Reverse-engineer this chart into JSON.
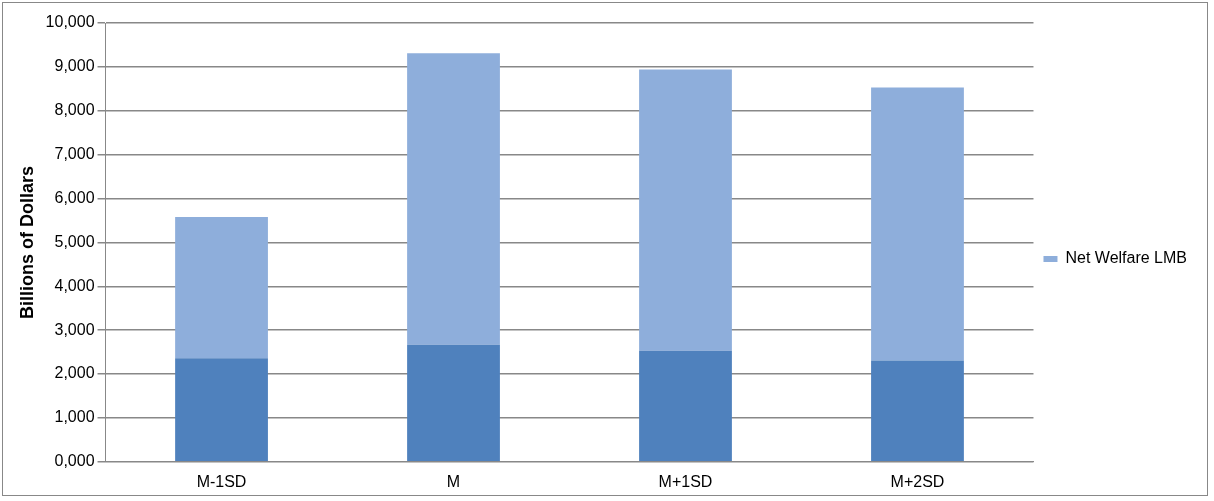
{
  "chart_data": {
    "type": "bar",
    "stacked": true,
    "ylabel": "Billions of Dollars",
    "categories": [
      "M-1SD",
      "M",
      "M+1SD",
      "M+2SD"
    ],
    "series": [
      {
        "color": "#4f81bd",
        "values": [
          2360,
          2670,
          2530,
          2310
        ]
      },
      {
        "name": "Net Welfare LMB",
        "color": "#8eaedb",
        "values": [
          3220,
          6640,
          6410,
          6220
        ]
      }
    ],
    "ylim": [
      0,
      10000
    ],
    "yticks": [
      {
        "value": 0,
        "label": "0,000"
      },
      {
        "value": 1000,
        "label": "1,000"
      },
      {
        "value": 2000,
        "label": "2,000"
      },
      {
        "value": 3000,
        "label": "3,000"
      },
      {
        "value": 4000,
        "label": "4,000"
      },
      {
        "value": 5000,
        "label": "5,000"
      },
      {
        "value": 6000,
        "label": "6,000"
      },
      {
        "value": 7000,
        "label": "7,000"
      },
      {
        "value": 8000,
        "label": "8,000"
      },
      {
        "value": 9000,
        "label": "9,000"
      },
      {
        "value": 10000,
        "label": "10,000"
      }
    ],
    "grid": "y",
    "legend": "right"
  }
}
